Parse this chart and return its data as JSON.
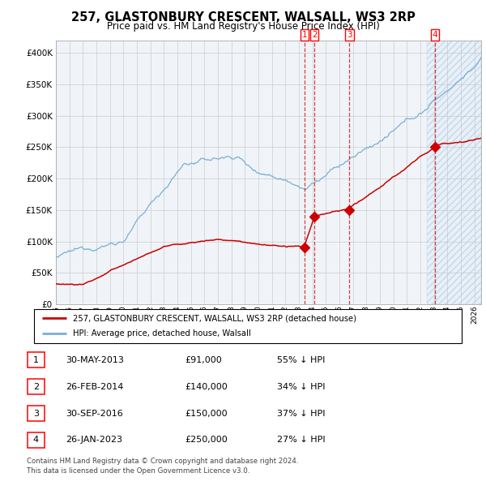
{
  "title": "257, GLASTONBURY CRESCENT, WALSALL, WS3 2RP",
  "subtitle": "Price paid vs. HM Land Registry's House Price Index (HPI)",
  "legend_label_red": "257, GLASTONBURY CRESCENT, WALSALL, WS3 2RP (detached house)",
  "legend_label_blue": "HPI: Average price, detached house, Walsall",
  "footer_line1": "Contains HM Land Registry data © Crown copyright and database right 2024.",
  "footer_line2": "This data is licensed under the Open Government Licence v3.0.",
  "transactions": [
    {
      "num": 1,
      "date": "30-MAY-2013",
      "price_str": "£91,000",
      "price": 91000,
      "pct": "55%",
      "x_year": 2013.41
    },
    {
      "num": 2,
      "date": "26-FEB-2014",
      "price_str": "£140,000",
      "price": 140000,
      "pct": "34%",
      "x_year": 2014.15
    },
    {
      "num": 3,
      "date": "30-SEP-2016",
      "price_str": "£150,000",
      "price": 150000,
      "pct": "37%",
      "x_year": 2016.75
    },
    {
      "num": 4,
      "date": "26-JAN-2023",
      "price_str": "£250,000",
      "price": 250000,
      "pct": "27%",
      "x_year": 2023.07
    }
  ],
  "ylim": [
    0,
    420000
  ],
  "xlim": [
    1995.0,
    2026.5
  ],
  "yticks": [
    0,
    50000,
    100000,
    150000,
    200000,
    250000,
    300000,
    350000,
    400000
  ],
  "xticks": [
    1995,
    1996,
    1997,
    1998,
    1999,
    2000,
    2001,
    2002,
    2003,
    2004,
    2005,
    2006,
    2007,
    2008,
    2009,
    2010,
    2011,
    2012,
    2013,
    2014,
    2015,
    2016,
    2017,
    2018,
    2019,
    2020,
    2021,
    2022,
    2023,
    2024,
    2025,
    2026
  ],
  "shade_start": 2022.5,
  "color_red": "#cc0000",
  "color_blue": "#7aaed6",
  "color_shade_bg": "#e8f0f8",
  "color_hatch": "#b0c8e0",
  "color_grid": "#cccccc",
  "chart_bg": "#f0f4f8"
}
